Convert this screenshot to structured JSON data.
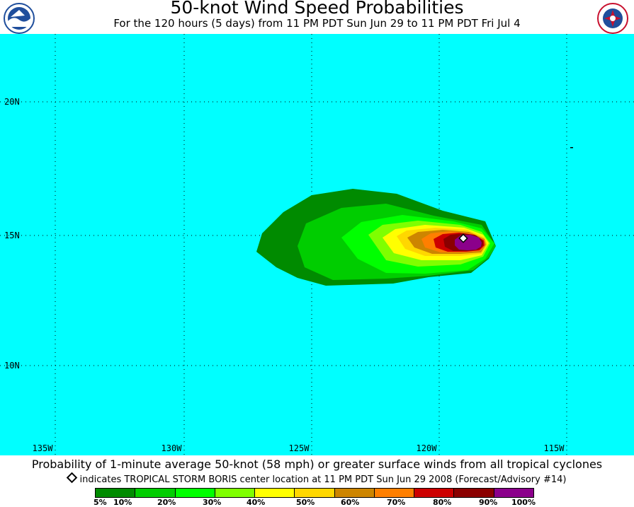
{
  "header": {
    "title": "50-knot Wind Speed Probabilities",
    "subtitle": "For the 120 hours (5 days) from 11 PM PDT Sun Jun 29 to 11 PM PDT Fri Jul 4",
    "left_logo": "noaa-logo",
    "right_logo": "nws-logo"
  },
  "map": {
    "background_color": "#00ffff",
    "lat_labels": [
      "20N",
      "15N",
      "10N"
    ],
    "lon_labels": [
      "135W",
      "130W",
      "125W",
      "120W",
      "115W"
    ],
    "storm_center_marker": "diamond"
  },
  "footer": {
    "caption": "Probability of 1-minute average 50-knot (58 mph) or greater surface winds from all tropical cyclones",
    "note": "indicates TROPICAL STORM BORIS center location at 11 PM PDT Sun Jun 29 2008 (Forecast/Advisory #14)"
  },
  "legend": {
    "colors": [
      "#008b00",
      "#00cd00",
      "#00ff00",
      "#7fff00",
      "#ffff00",
      "#ffd700",
      "#cd8500",
      "#ff7f00",
      "#cd0000",
      "#8b0000",
      "#8b008b"
    ],
    "labels": [
      "5%",
      "10%",
      "20%",
      "30%",
      "40%",
      "50%",
      "60%",
      "70%",
      "80%",
      "90%",
      "100%"
    ]
  }
}
